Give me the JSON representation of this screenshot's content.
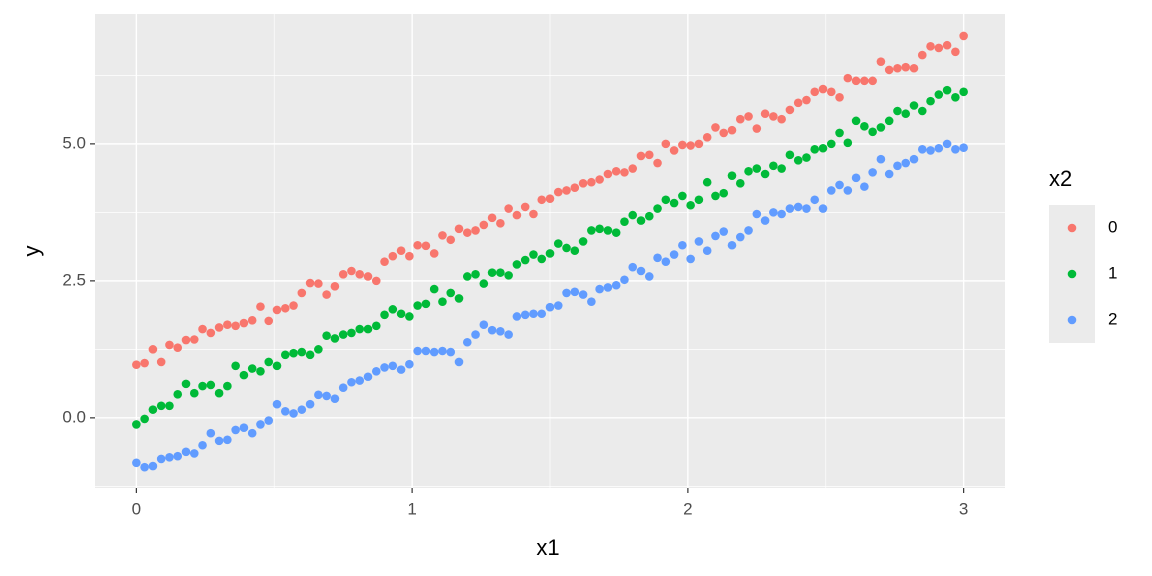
{
  "chart_data": {
    "type": "scatter",
    "xlabel": "x1",
    "ylabel": "y",
    "legend_title": "x2",
    "legend_position": "right",
    "xlim": [
      -0.15,
      3.15
    ],
    "ylim": [
      -1.28,
      7.37
    ],
    "xticks": [
      0,
      1,
      2,
      3
    ],
    "yticks": [
      {
        "value": 0,
        "label": "0.0"
      },
      2.5,
      {
        "value": 5,
        "label": "5.0"
      }
    ],
    "grid": true,
    "x": [
      0,
      0.03,
      0.06,
      0.09,
      0.12,
      0.15,
      0.18,
      0.21,
      0.24,
      0.27,
      0.3,
      0.33,
      0.36,
      0.39,
      0.42,
      0.45,
      0.48,
      0.51,
      0.54,
      0.57,
      0.6,
      0.63,
      0.66,
      0.69,
      0.72,
      0.75,
      0.78,
      0.81,
      0.84,
      0.87,
      0.9,
      0.93,
      0.96,
      0.99,
      1.02,
      1.05,
      1.08,
      1.11,
      1.14,
      1.17,
      1.2,
      1.23,
      1.26,
      1.29,
      1.32,
      1.35,
      1.38,
      1.41,
      1.44,
      1.47,
      1.5,
      1.53,
      1.56,
      1.59,
      1.62,
      1.65,
      1.68,
      1.71,
      1.74,
      1.77,
      1.8,
      1.83,
      1.86,
      1.89,
      1.92,
      1.95,
      1.98,
      2.01,
      2.04,
      2.07,
      2.1,
      2.13,
      2.16,
      2.19,
      2.22,
      2.25,
      2.28,
      2.31,
      2.34,
      2.37,
      2.4,
      2.43,
      2.46,
      2.49,
      2.52,
      2.55,
      2.58,
      2.61,
      2.64,
      2.67,
      2.7,
      2.73,
      2.76,
      2.79,
      2.82,
      2.85,
      2.88,
      2.91,
      2.94,
      2.97,
      3
    ],
    "series": [
      {
        "name": "0",
        "color": "#F8766D",
        "values": [
          0.97,
          1.0,
          1.25,
          1.02,
          1.33,
          1.28,
          1.42,
          1.43,
          1.62,
          1.55,
          1.65,
          1.7,
          1.68,
          1.73,
          1.78,
          2.03,
          1.77,
          1.97,
          2.0,
          2.05,
          2.28,
          2.46,
          2.45,
          2.25,
          2.4,
          2.62,
          2.68,
          2.62,
          2.58,
          2.5,
          2.85,
          2.95,
          3.05,
          2.95,
          3.15,
          3.14,
          3.0,
          3.33,
          3.25,
          3.45,
          3.38,
          3.42,
          3.52,
          3.65,
          3.55,
          3.82,
          3.7,
          3.85,
          3.72,
          3.98,
          4.0,
          4.12,
          4.15,
          4.2,
          4.28,
          4.3,
          4.35,
          4.45,
          4.5,
          4.48,
          4.55,
          4.78,
          4.8,
          4.65,
          5.0,
          4.88,
          4.98,
          4.97,
          5.0,
          5.12,
          5.3,
          5.2,
          5.25,
          5.45,
          5.5,
          5.28,
          5.55,
          5.5,
          5.45,
          5.62,
          5.75,
          5.8,
          5.95,
          6.0,
          5.95,
          5.85,
          6.2,
          6.15,
          6.15,
          6.15,
          6.5,
          6.35,
          6.38,
          6.4,
          6.38,
          6.62,
          6.78,
          6.75,
          6.8,
          6.68,
          6.97
        ]
      },
      {
        "name": "1",
        "color": "#00BA38",
        "values": [
          -0.12,
          -0.02,
          0.15,
          0.22,
          0.22,
          0.43,
          0.62,
          0.45,
          0.58,
          0.6,
          0.45,
          0.58,
          0.95,
          0.78,
          0.9,
          0.85,
          1.02,
          0.95,
          1.15,
          1.18,
          1.2,
          1.15,
          1.25,
          1.5,
          1.45,
          1.52,
          1.55,
          1.62,
          1.62,
          1.68,
          1.88,
          1.98,
          1.9,
          1.85,
          2.05,
          2.08,
          2.35,
          2.12,
          2.28,
          2.18,
          2.58,
          2.62,
          2.45,
          2.65,
          2.65,
          2.6,
          2.8,
          2.88,
          2.98,
          2.9,
          3.0,
          3.18,
          3.1,
          3.05,
          3.22,
          3.42,
          3.45,
          3.42,
          3.38,
          3.58,
          3.7,
          3.6,
          3.68,
          3.82,
          3.98,
          3.92,
          4.05,
          3.88,
          3.98,
          4.3,
          4.05,
          4.1,
          4.42,
          4.28,
          4.5,
          4.55,
          4.45,
          4.6,
          4.55,
          4.8,
          4.7,
          4.75,
          4.9,
          4.92,
          5.0,
          5.2,
          5.02,
          5.42,
          5.32,
          5.22,
          5.3,
          5.42,
          5.6,
          5.55,
          5.7,
          5.6,
          5.78,
          5.9,
          5.98,
          5.85,
          5.95
        ]
      },
      {
        "name": "2",
        "color": "#619CFF",
        "values": [
          -0.82,
          -0.9,
          -0.88,
          -0.75,
          -0.72,
          -0.7,
          -0.62,
          -0.65,
          -0.5,
          -0.28,
          -0.42,
          -0.4,
          -0.22,
          -0.18,
          -0.28,
          -0.12,
          -0.05,
          0.25,
          0.12,
          0.08,
          0.15,
          0.25,
          0.42,
          0.4,
          0.35,
          0.55,
          0.65,
          0.68,
          0.75,
          0.85,
          0.92,
          0.95,
          0.88,
          0.98,
          1.22,
          1.22,
          1.2,
          1.22,
          1.2,
          1.02,
          1.38,
          1.52,
          1.7,
          1.6,
          1.58,
          1.52,
          1.85,
          1.88,
          1.9,
          1.9,
          2.02,
          2.05,
          2.28,
          2.3,
          2.25,
          2.12,
          2.35,
          2.38,
          2.42,
          2.52,
          2.75,
          2.68,
          2.58,
          2.92,
          2.85,
          2.98,
          3.15,
          2.9,
          3.22,
          3.05,
          3.32,
          3.4,
          3.15,
          3.3,
          3.42,
          3.72,
          3.6,
          3.75,
          3.72,
          3.82,
          3.85,
          3.82,
          3.98,
          3.82,
          4.15,
          4.25,
          4.15,
          4.38,
          4.22,
          4.48,
          4.72,
          4.45,
          4.6,
          4.65,
          4.72,
          4.9,
          4.88,
          4.92,
          5.0,
          4.9,
          4.93
        ]
      }
    ]
  }
}
